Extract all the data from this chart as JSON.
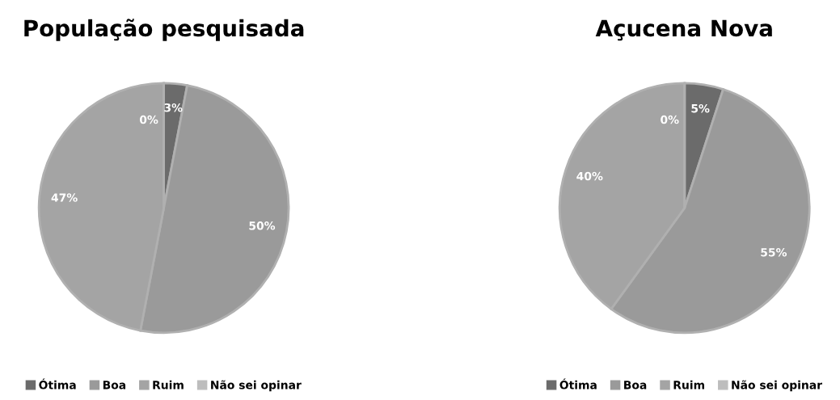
{
  "chart_data": [
    {
      "type": "pie",
      "title": "População pesquisada",
      "categories": [
        "Ótima",
        "Boa",
        "Ruim",
        "Não sei opinar"
      ],
      "values": [
        3,
        50,
        47,
        0
      ],
      "value_labels": [
        "3%",
        "50%",
        "47%",
        "0%"
      ],
      "colors": [
        "#6b6b6b",
        "#9a9a9a",
        "#a4a4a4",
        "#bdbdbd"
      ],
      "legend": "bottom"
    },
    {
      "type": "pie",
      "title": "Açucena Nova",
      "categories": [
        "Ótima",
        "Boa",
        "Ruim",
        "Não sei opinar"
      ],
      "values": [
        5,
        55,
        40,
        0
      ],
      "value_labels": [
        "5%",
        "55%",
        "40%",
        "0%"
      ],
      "colors": [
        "#6b6b6b",
        "#9a9a9a",
        "#a4a4a4",
        "#bdbdbd"
      ],
      "legend": "bottom"
    }
  ]
}
